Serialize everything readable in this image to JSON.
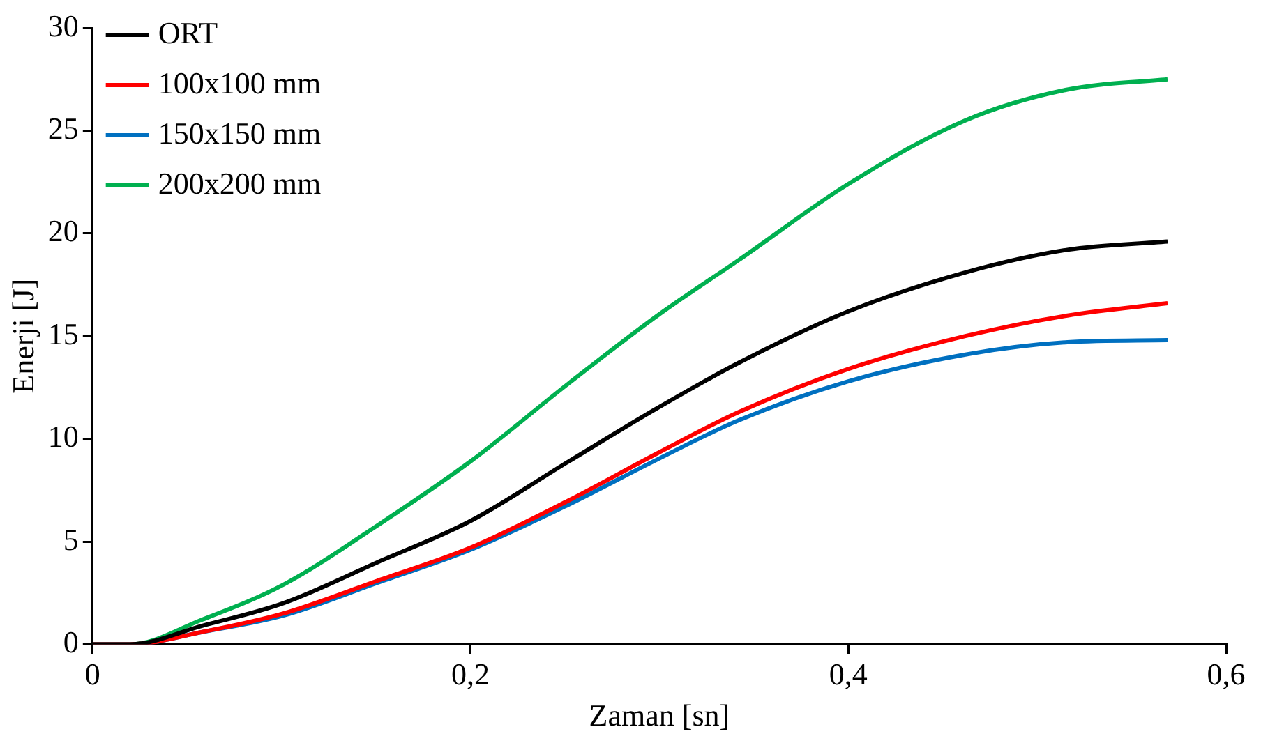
{
  "chart_data": {
    "type": "line",
    "xlabel": "Zaman [sn]",
    "ylabel": "Enerji [J]",
    "x": [
      0,
      0.02,
      0.058,
      0.101,
      0.151,
      0.2,
      0.252,
      0.299,
      0.342,
      0.4,
      0.462,
      0.516,
      0.569
    ],
    "series": [
      {
        "name": "ORT",
        "color": "#000000",
        "values": [
          0,
          0,
          0.9,
          2.0,
          4.0,
          6.0,
          8.9,
          11.5,
          13.7,
          16.2,
          18.1,
          19.2,
          19.6
        ]
      },
      {
        "name": "100x100 mm",
        "color": "#ff0000",
        "values": [
          0,
          0,
          0.6,
          1.5,
          3.1,
          4.7,
          7.0,
          9.3,
          11.3,
          13.4,
          15.0,
          16.0,
          16.6
        ]
      },
      {
        "name": "150x150 mm",
        "color": "#0070c0",
        "values": [
          0,
          0,
          0.6,
          1.4,
          3.0,
          4.6,
          6.8,
          9.0,
          10.9,
          12.8,
          14.1,
          14.7,
          14.8
        ]
      },
      {
        "name": "200x200 mm",
        "color": "#00b050",
        "values": [
          0,
          0,
          1.2,
          2.9,
          5.8,
          8.9,
          12.7,
          16.0,
          18.7,
          22.4,
          25.5,
          27.0,
          27.5
        ]
      }
    ],
    "xlim": [
      0,
      0.6
    ],
    "xticks": [
      0,
      {
        "value": 0.2,
        "label": "0,2"
      },
      {
        "value": 0.4,
        "label": "0,4"
      },
      {
        "value": 0.6,
        "label": "0,6"
      }
    ],
    "ylim": [
      0,
      30
    ],
    "yticks": [
      0,
      5,
      10,
      15,
      20,
      25,
      30
    ],
    "grid": false,
    "legend": "top left",
    "marker": "none",
    "line_style": "solid"
  }
}
